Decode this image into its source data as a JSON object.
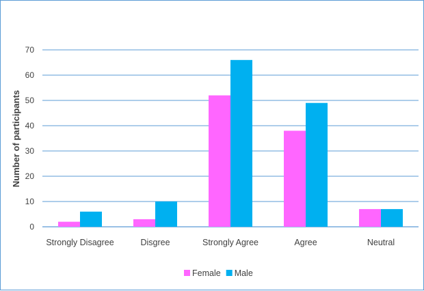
{
  "chart_data": {
    "type": "bar",
    "title": "",
    "xlabel": "",
    "ylabel": "Number of participants",
    "ylim": [
      0,
      70
    ],
    "yticks": [
      0,
      10,
      20,
      30,
      40,
      50,
      60,
      70
    ],
    "grid": true,
    "legend_position": "bottom",
    "categories": [
      "Strongly Disagree",
      "Disgree",
      "Strongly Agree",
      "Agree",
      "Neutral"
    ],
    "series": [
      {
        "name": "Female",
        "color": "#ff66ff",
        "values": [
          2,
          3,
          52,
          38,
          7
        ]
      },
      {
        "name": "Male",
        "color": "#00b0f0",
        "values": [
          6,
          10,
          66,
          49,
          7
        ]
      }
    ]
  },
  "colors": {
    "gridline": "#5b9bd5",
    "frame": "#5b9bd5"
  }
}
